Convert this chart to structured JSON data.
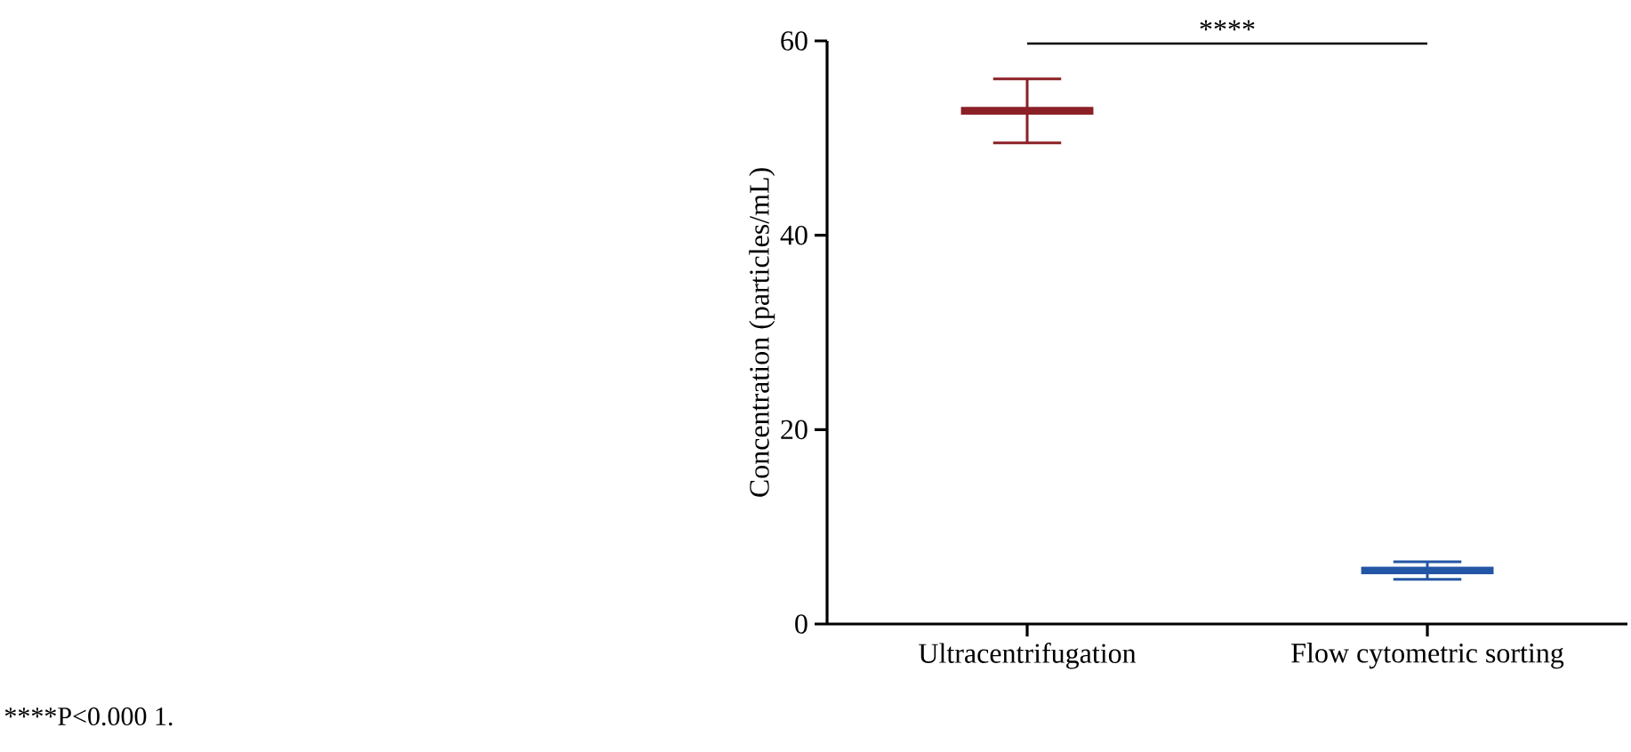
{
  "chart_data": {
    "type": "box",
    "ylabel": "Concentration (particles/mL)",
    "categories": [
      "Ultracentrifugation",
      "Flow cytometric sorting"
    ],
    "boxes": [
      {
        "low": 49.5,
        "q1": 52.8,
        "median": 52.8,
        "q3": 52.8,
        "high": 56.1
      },
      {
        "low": 4.6,
        "q1": 5.5,
        "median": 5.5,
        "q3": 5.5,
        "high": 6.4
      }
    ],
    "colors": [
      "#8b2027",
      "#2456a6"
    ],
    "ylim": [
      0,
      60
    ],
    "yticks": [
      0,
      20,
      40,
      60
    ],
    "annotations": [
      "****",
      "****P<0.000 1."
    ]
  }
}
